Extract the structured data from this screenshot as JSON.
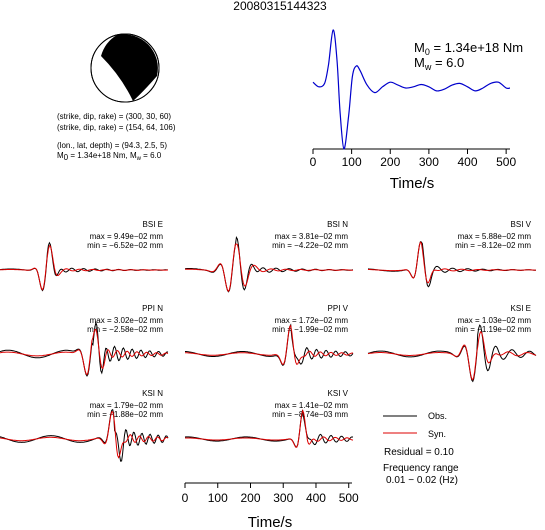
{
  "event_id": "20080315144323",
  "mechanism": {
    "plane1": "(strike, dip, rake) = (300, 30, 60)",
    "plane2": "(strike, dip, rake) = (154, 64, 106)",
    "location": "(lon., lat, depth) = (94.3, 2.5, 5)",
    "moment": "M0 = 1.34e+18 Nm, Mw = 6.0",
    "moment_M": "M",
    "moment_sub0": "0",
    "moment_rest1": " = 1.34e+18 Nm, M",
    "moment_subw": "w",
    "moment_rest2": " = 6.0",
    "colors": {
      "compression": "#000000",
      "dilatation": "#ffffff"
    }
  },
  "stf": {
    "annot_M0_prefix": "M",
    "annot_M0_sub": "0",
    "annot_M0_value": " = 1.34e+18 Nm",
    "annot_Mw_prefix": "M",
    "annot_Mw_sub": "w",
    "annot_Mw_value": " = 6.0",
    "color": "#0000cc"
  },
  "legend": {
    "obs_label": "Obs.",
    "syn_label": "Syn.",
    "obs_color": "#000000",
    "syn_color": "#dd0000",
    "residual": "Residual = 0.10",
    "freq_title": "Frequency range",
    "freq_value": "0.01 − 0.02 (Hz)"
  },
  "chart_data": [
    {
      "type": "line",
      "title": "",
      "xlabel": "Time/s",
      "ylabel": "",
      "xlim": [
        0,
        510
      ],
      "xticks": [
        "0",
        "100",
        "200",
        "300",
        "400",
        "500"
      ],
      "series": [
        {
          "name": "",
          "x": [
            0,
            15,
            30,
            40,
            52,
            62,
            70,
            80,
            92,
            102,
            112,
            122,
            140,
            160,
            180,
            200,
            220,
            240,
            260,
            280,
            300,
            320,
            340,
            360,
            380,
            400,
            420,
            440,
            460,
            480,
            500,
            510
          ],
          "values": [
            0.1,
            0.02,
            0.08,
            0.4,
            1.0,
            0.5,
            -0.4,
            -1.05,
            -0.5,
            0.2,
            0.38,
            0.3,
            0.05,
            -0.08,
            0.02,
            0.1,
            0.05,
            0.0,
            0.02,
            0.06,
            0.02,
            -0.05,
            -0.02,
            0.05,
            0.08,
            0.02,
            -0.05,
            0.0,
            0.08,
            0.1,
            0.0,
            0.0
          ]
        }
      ]
    },
    {
      "type": "line",
      "title": "",
      "xlabel": "Time/s",
      "ylabel": "",
      "xlim": [
        0,
        510
      ],
      "xticks": [
        "0",
        "100",
        "200",
        "300",
        "400",
        "500"
      ],
      "panels": [
        {
          "station": "BSI E",
          "max": "max = 9.49e−02 mm",
          "min": "min = −6.52e−02 mm"
        },
        {
          "station": "BSI N",
          "max": "max = 3.81e−02 mm",
          "min": "min = −4.22e−02 mm"
        },
        {
          "station": "BSI V",
          "max": "max = 5.88e−02 mm",
          "min": "min = −8.12e−02 mm"
        },
        {
          "station": "PPI N",
          "max": "max = 3.02e−02 mm",
          "min": "min = −2.58e−02 mm"
        },
        {
          "station": "PPI V",
          "max": "max = 1.72e−02 mm",
          "min": "min = −1.99e−02 mm"
        },
        {
          "station": "KSI E",
          "max": "max = 1.03e−02 mm",
          "min": "min = −1.19e−02 mm"
        },
        {
          "station": "KSI N",
          "max": "max = 1.79e−02 mm",
          "min": "min = −1.88e−02 mm"
        },
        {
          "station": "KSI V",
          "max": "max = 1.41e−02 mm",
          "min": "min = −8.74e−03 mm"
        }
      ],
      "series": [
        {
          "name": "Obs."
        },
        {
          "name": "Syn."
        }
      ]
    }
  ]
}
